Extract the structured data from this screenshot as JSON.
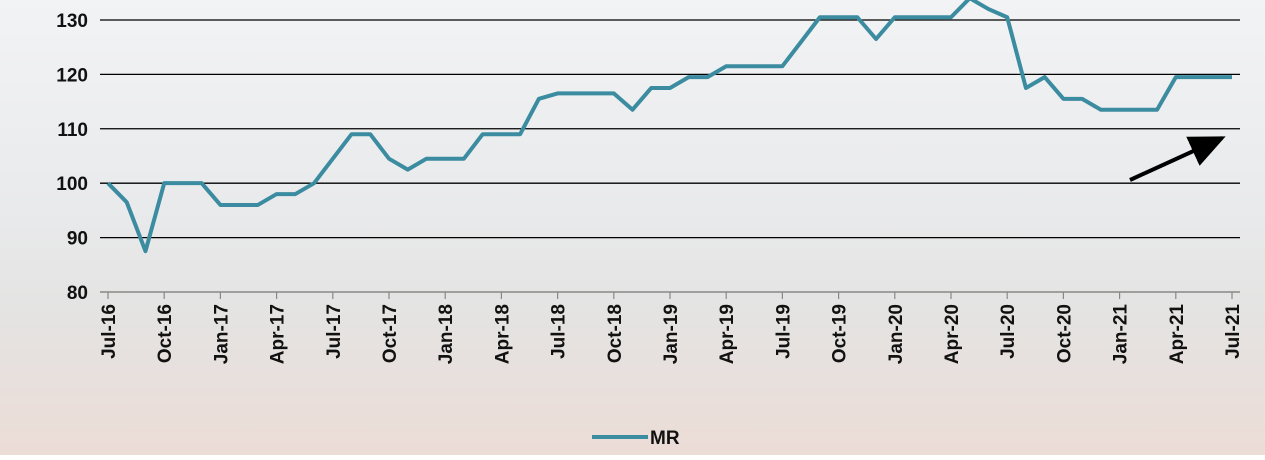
{
  "chart_data": {
    "type": "line",
    "categories": [
      "Jul-16",
      null,
      null,
      "Oct-16",
      null,
      null,
      "Jan-17",
      null,
      null,
      "Apr-17",
      null,
      null,
      "Jul-17",
      null,
      null,
      "Oct-17",
      null,
      null,
      "Jan-18",
      null,
      null,
      "Apr-18",
      null,
      null,
      "Jul-18",
      null,
      null,
      "Oct-18",
      null,
      null,
      "Jan-19",
      null,
      null,
      "Apr-19",
      null,
      null,
      "Jul-19",
      null,
      null,
      "Oct-19",
      null,
      null,
      "Jan-20",
      null,
      null,
      "Apr-20",
      null,
      null,
      "Jul-20",
      null,
      null,
      "Oct-20",
      null,
      null,
      "Jan-21",
      null,
      null,
      "Apr-21",
      null,
      null,
      "Jul-21"
    ],
    "series": [
      {
        "name": "MR",
        "color": "#3b8ca0",
        "values": [
          100,
          96.5,
          87.5,
          100,
          100,
          100,
          96,
          96,
          96,
          98,
          98,
          100,
          104.5,
          109,
          109,
          104.5,
          102.5,
          104.5,
          104.5,
          104.5,
          109,
          109,
          109,
          115.5,
          116.5,
          116.5,
          116.5,
          116.5,
          113.5,
          117.5,
          117.5,
          119.5,
          119.5,
          121.5,
          121.5,
          121.5,
          121.5,
          126,
          130.5,
          130.5,
          130.5,
          126.5,
          130.5,
          130.5,
          130.5,
          130.5,
          134,
          132,
          130.5,
          117.5,
          119.5,
          115.5,
          115.5,
          113.5,
          113.5,
          113.5,
          113.5,
          119.5,
          119.5,
          119.5,
          119.5
        ]
      }
    ],
    "ylim": [
      80,
      134
    ],
    "yticks": [
      80,
      90,
      100,
      110,
      120,
      130
    ],
    "grid": true,
    "legend": "bottom"
  }
}
